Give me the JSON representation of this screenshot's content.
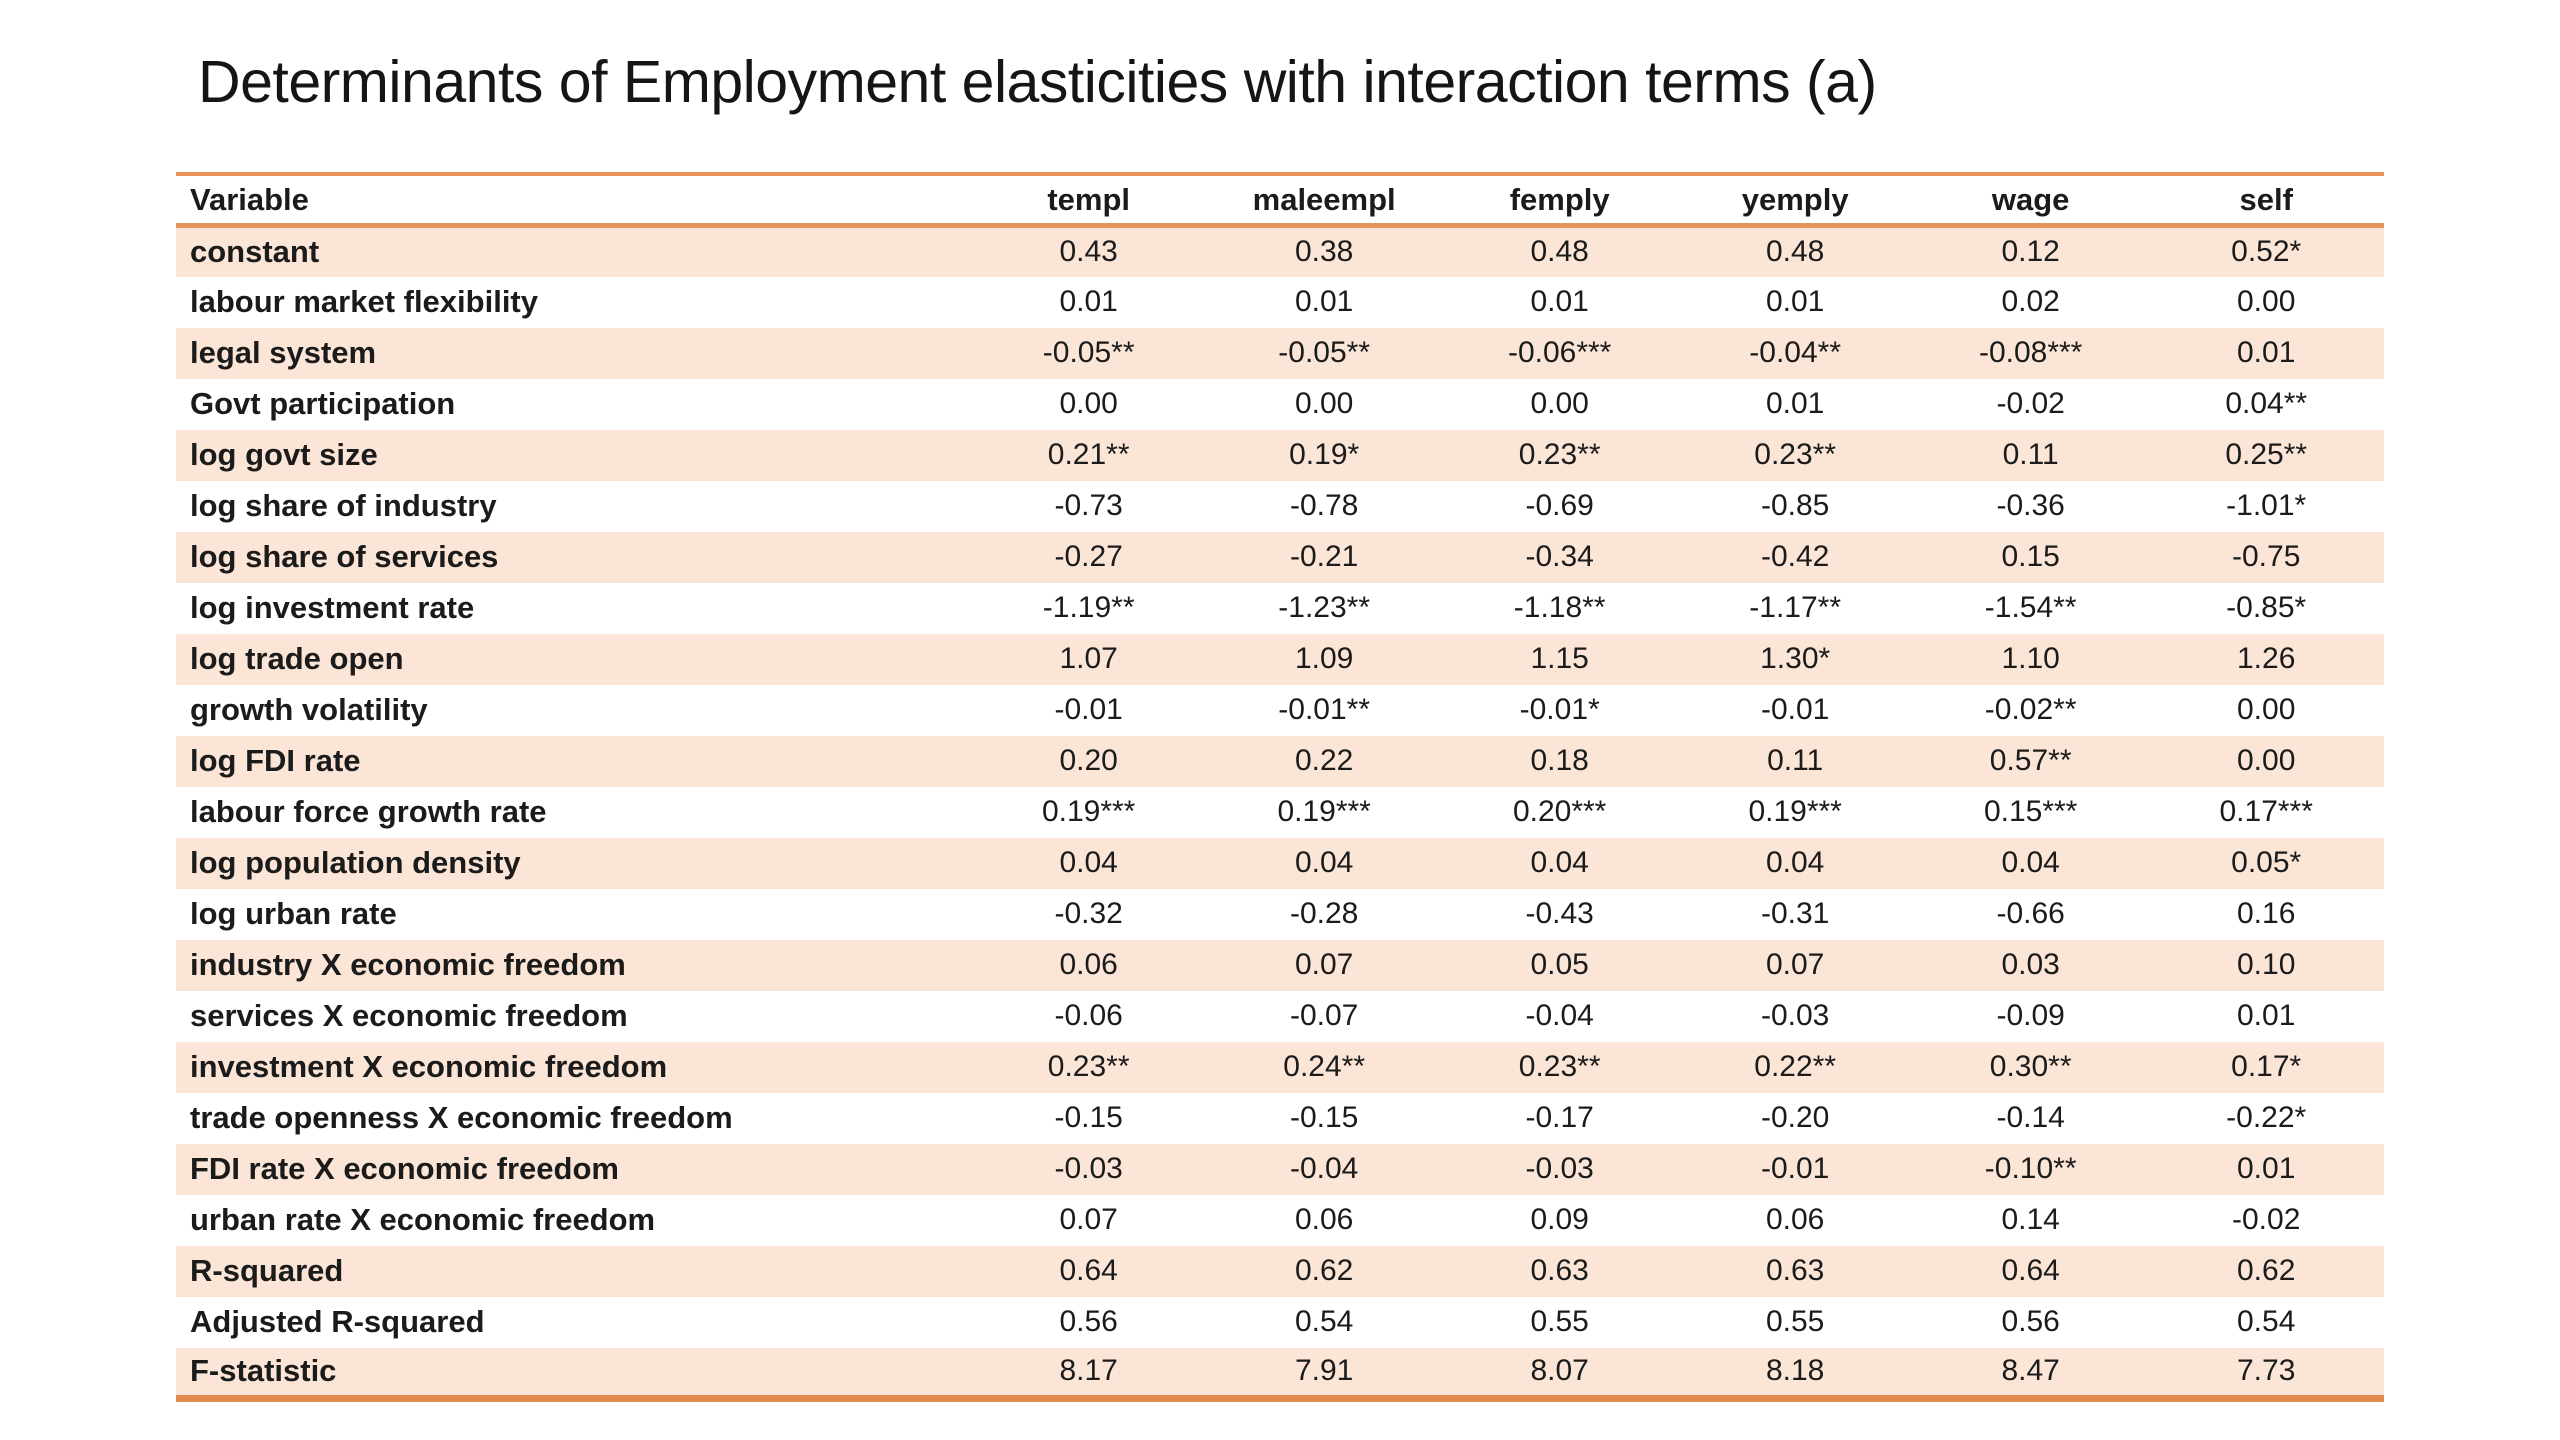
{
  "title": "Determinants of Employment elasticities with interaction terms (a)",
  "colors": {
    "background": "#ffffff",
    "row_shade": "#fbe5d6",
    "rule_orange": "#e8935a",
    "text": "#1b1b1b"
  },
  "table": {
    "columns": [
      "Variable",
      "templ",
      "maleempl",
      "femply",
      "yemply",
      "wage",
      "self"
    ],
    "rows": [
      {
        "variable": "constant",
        "values": [
          "0.43",
          "0.38",
          "0.48",
          "0.48",
          "0.12",
          "0.52*"
        ]
      },
      {
        "variable": "labour market flexibility",
        "values": [
          "0.01",
          "0.01",
          "0.01",
          "0.01",
          "0.02",
          "0.00"
        ]
      },
      {
        "variable": "legal system",
        "values": [
          "-0.05**",
          "-0.05**",
          "-0.06***",
          "-0.04**",
          "-0.08***",
          "0.01"
        ]
      },
      {
        "variable": "Govt participation",
        "values": [
          "0.00",
          "0.00",
          "0.00",
          "0.01",
          "-0.02",
          "0.04**"
        ]
      },
      {
        "variable": "log govt size",
        "values": [
          "0.21**",
          "0.19*",
          "0.23**",
          "0.23**",
          "0.11",
          "0.25**"
        ]
      },
      {
        "variable": "log share of industry",
        "values": [
          "-0.73",
          "-0.78",
          "-0.69",
          "-0.85",
          "-0.36",
          "-1.01*"
        ]
      },
      {
        "variable": "log share of services",
        "values": [
          "-0.27",
          "-0.21",
          "-0.34",
          "-0.42",
          "0.15",
          "-0.75"
        ]
      },
      {
        "variable": "log investment rate",
        "values": [
          "-1.19**",
          "-1.23**",
          "-1.18**",
          "-1.17**",
          "-1.54**",
          "-0.85*"
        ]
      },
      {
        "variable": "log trade open",
        "values": [
          "1.07",
          "1.09",
          "1.15",
          "1.30*",
          "1.10",
          "1.26"
        ]
      },
      {
        "variable": "growth volatility",
        "values": [
          "-0.01",
          "-0.01**",
          "-0.01*",
          "-0.01",
          "-0.02**",
          "0.00"
        ]
      },
      {
        "variable": "log FDI rate",
        "values": [
          "0.20",
          "0.22",
          "0.18",
          "0.11",
          "0.57**",
          "0.00"
        ]
      },
      {
        "variable": "labour force growth rate",
        "values": [
          "0.19***",
          "0.19***",
          "0.20***",
          "0.19***",
          "0.15***",
          "0.17***"
        ]
      },
      {
        "variable": "log population density",
        "values": [
          "0.04",
          "0.04",
          "0.04",
          "0.04",
          "0.04",
          "0.05*"
        ]
      },
      {
        "variable": "log urban rate",
        "values": [
          "-0.32",
          "-0.28",
          "-0.43",
          "-0.31",
          "-0.66",
          "0.16"
        ]
      },
      {
        "variable": "industry X economic freedom",
        "values": [
          "0.06",
          "0.07",
          "0.05",
          "0.07",
          "0.03",
          "0.10"
        ]
      },
      {
        "variable": "services X economic freedom",
        "values": [
          "-0.06",
          "-0.07",
          "-0.04",
          "-0.03",
          "-0.09",
          "0.01"
        ]
      },
      {
        "variable": "investment X economic freedom",
        "values": [
          "0.23**",
          "0.24**",
          "0.23**",
          "0.22**",
          "0.30**",
          "0.17*"
        ]
      },
      {
        "variable": "trade openness X economic freedom",
        "values": [
          "-0.15",
          "-0.15",
          "-0.17",
          "-0.20",
          "-0.14",
          "-0.22*"
        ]
      },
      {
        "variable": "FDI rate X economic freedom",
        "values": [
          "-0.03",
          "-0.04",
          "-0.03",
          "-0.01",
          "-0.10**",
          "0.01"
        ]
      },
      {
        "variable": "urban rate X economic freedom",
        "values": [
          "0.07",
          "0.06",
          "0.09",
          "0.06",
          "0.14",
          "-0.02"
        ]
      },
      {
        "variable": "R-squared",
        "values": [
          "0.64",
          "0.62",
          "0.63",
          "0.63",
          "0.64",
          "0.62"
        ]
      },
      {
        "variable": "Adjusted R-squared",
        "values": [
          "0.56",
          "0.54",
          "0.55",
          "0.55",
          "0.56",
          "0.54"
        ]
      },
      {
        "variable": "F-statistic",
        "values": [
          "8.17",
          "7.91",
          "8.07",
          "8.18",
          "8.47",
          "7.73"
        ]
      }
    ]
  }
}
